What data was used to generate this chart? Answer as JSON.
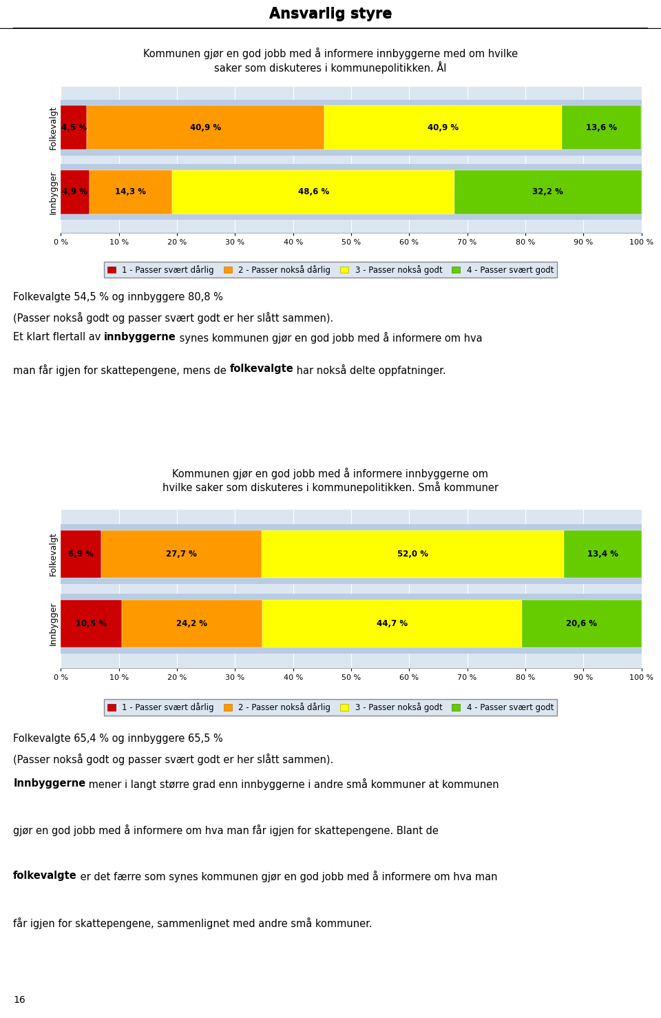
{
  "title": "Ansvarlig styre",
  "chart1": {
    "title": "Kommunen gjør en god jobb med å informere innbyggerne med om hvilke\nsaker som diskuteres i kommunepolitikken. Ål",
    "categories": [
      "Folkevalgt",
      "Innbygger"
    ],
    "values": [
      [
        4.5,
        40.9,
        40.9,
        13.6
      ],
      [
        4.9,
        14.3,
        48.6,
        32.2
      ]
    ],
    "labels": [
      [
        "4,5 %",
        "40,9 %",
        "40,9 %",
        "13,6 %"
      ],
      [
        "4,9 %",
        "14,3 %",
        "48,6 %",
        "32,2 %"
      ]
    ]
  },
  "chart2": {
    "title": "Kommunen gjør en god jobb med å informere innbyggerne om\nhvilke saker som diskuteres i kommunepolitikken. Små kommuner",
    "categories": [
      "Folkevalgt",
      "Innbygger"
    ],
    "values": [
      [
        6.9,
        27.7,
        52.0,
        13.4
      ],
      [
        10.5,
        24.2,
        44.7,
        20.6
      ]
    ],
    "labels": [
      [
        "6,9 %",
        "27,7 %",
        "52,0 %",
        "13,4 %"
      ],
      [
        "10,5 %",
        "24,2 %",
        "44,7 %",
        "20,6 %"
      ]
    ]
  },
  "colors": [
    "#cc0000",
    "#ff9900",
    "#ffff00",
    "#66cc00"
  ],
  "legend_labels": [
    "1 - Passer svært dårlig",
    "2 - Passer nokså dårlig",
    "3 - Passer nokså godt",
    "4 - Passer svært godt"
  ],
  "bar_bg": "#b8cce4",
  "chart_bg": "#dce6f1",
  "chart_border": "#aaaaaa",
  "text1_line1": "Folkevalgte 54,5 % og innbyggere 80,8 %",
  "text1_line2": "(Passer nokså godt og passer svært godt er her slått sammen).",
  "text2_line1_pre": "Et klart flertall av ",
  "text2_line1_bold": "innbyggerne",
  "text2_line1_post": " synes kommunen gjør en god jobb med å informere om hva",
  "text2_line2_pre": "man får igjen for skattepengene, mens de ",
  "text2_line2_bold": "folkevalgte",
  "text2_line2_post": " har nokså delte oppfatninger.",
  "text3_line1": "Folkevalgte 65,4 % og innbyggere 65,5 %",
  "text3_line2": "(Passer nokså godt og passer svært godt er her slått sammen).",
  "text4_lines": [
    [
      "Innbyggerne",
      " mener i langt større grad enn innbyggerne i andre små kommuner at kommunen"
    ],
    [
      "gjør en god jobb med å informere om hva man får igjen for skattepengene. Blant de"
    ],
    [
      "folkevalgte",
      " er det færre som synes kommunen gjør en god jobb med å informere om hva man"
    ],
    [
      "får igjen for skattepengene, sammenlignet med andre små kommuner."
    ]
  ],
  "page_number": "16"
}
